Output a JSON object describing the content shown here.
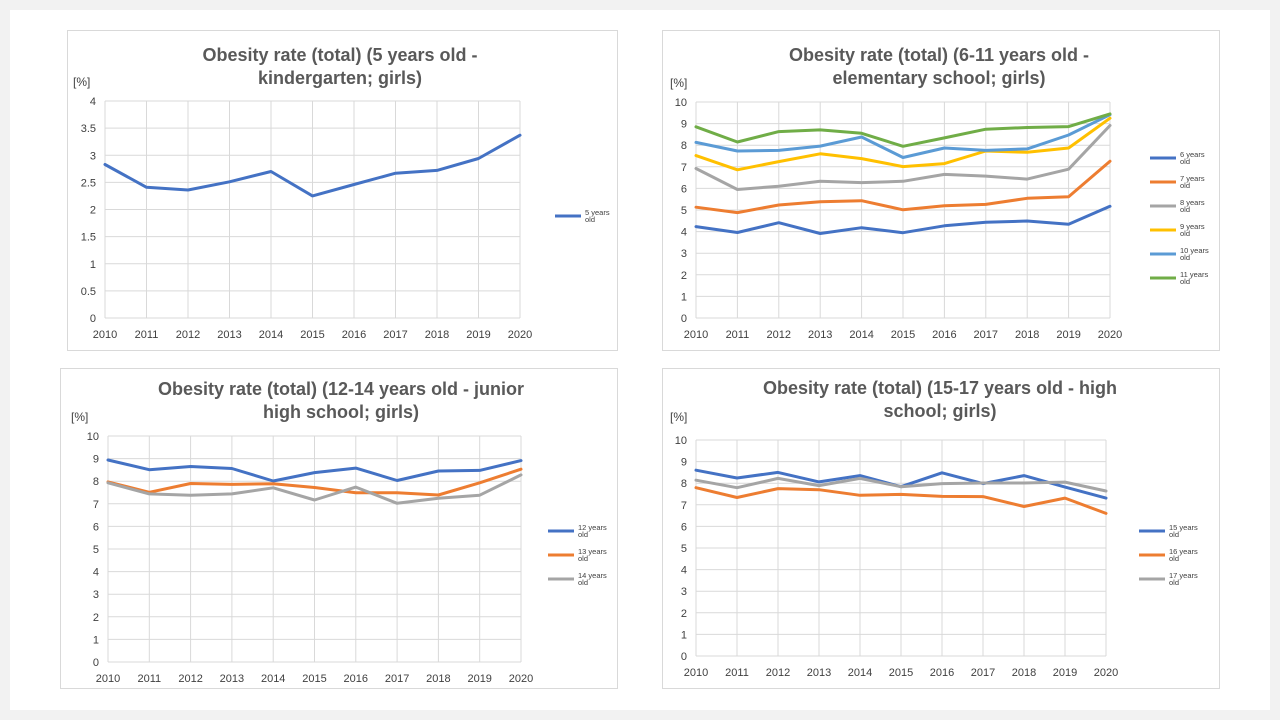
{
  "chart_data": [
    {
      "type": "line",
      "title_lines": [
        "Obesity rate (total) (5 years old -",
        "kindergarten; girls)"
      ],
      "unit_label": "[%]",
      "x": [
        "2010",
        "2011",
        "2012",
        "2013",
        "2014",
        "2015",
        "2016",
        "2017",
        "2018",
        "2019",
        "2020"
      ],
      "yticks": [
        "0",
        "0.5",
        "1",
        "1.5",
        "2",
        "2.5",
        "3",
        "3.5",
        "4"
      ],
      "ylim": [
        0,
        4
      ],
      "grid": true,
      "legend_position": "right",
      "series": [
        {
          "name_lines": [
            "5 years",
            "old"
          ],
          "color": "#4472c4",
          "values": [
            2.83,
            2.41,
            2.36,
            2.51,
            2.7,
            2.25,
            2.46,
            2.67,
            2.72,
            2.94,
            3.37
          ]
        }
      ]
    },
    {
      "type": "line",
      "title_lines": [
        "Obesity rate (total) (6-11 years old -",
        "elementary school; girls)"
      ],
      "unit_label": "[%]",
      "x": [
        "2010",
        "2011",
        "2012",
        "2013",
        "2014",
        "2015",
        "2016",
        "2017",
        "2018",
        "2019",
        "2020"
      ],
      "yticks": [
        "0",
        "1",
        "2",
        "3",
        "4",
        "5",
        "6",
        "7",
        "8",
        "9",
        "10"
      ],
      "ylim": [
        0,
        10
      ],
      "grid": true,
      "legend_position": "right",
      "series": [
        {
          "name_lines": [
            "6 years",
            "old"
          ],
          "color": "#4472c4",
          "values": [
            4.23,
            3.96,
            4.41,
            3.91,
            4.18,
            3.95,
            4.27,
            4.43,
            4.49,
            4.34,
            5.17
          ]
        },
        {
          "name_lines": [
            "7 years",
            "old"
          ],
          "color": "#ed7d31",
          "values": [
            5.13,
            4.88,
            5.23,
            5.38,
            5.43,
            5.01,
            5.2,
            5.26,
            5.54,
            5.61,
            7.26
          ]
        },
        {
          "name_lines": [
            "8 years",
            "old"
          ],
          "color": "#a5a5a5",
          "values": [
            6.92,
            5.95,
            6.1,
            6.33,
            6.27,
            6.33,
            6.65,
            6.57,
            6.43,
            6.89,
            8.91
          ]
        },
        {
          "name_lines": [
            "9 years",
            "old"
          ],
          "color": "#ffc000",
          "values": [
            7.52,
            6.86,
            7.24,
            7.6,
            7.38,
            7.01,
            7.15,
            7.73,
            7.67,
            7.87,
            9.25
          ]
        },
        {
          "name_lines": [
            "10 years",
            "old"
          ],
          "color": "#5b9bd5",
          "values": [
            8.13,
            7.73,
            7.76,
            7.96,
            8.38,
            7.43,
            7.87,
            7.76,
            7.83,
            8.47,
            9.41
          ]
        },
        {
          "name_lines": [
            "11 years",
            "old"
          ],
          "color": "#70ad47",
          "values": [
            8.85,
            8.15,
            8.63,
            8.71,
            8.55,
            7.95,
            8.34,
            8.74,
            8.82,
            8.86,
            9.45
          ]
        }
      ]
    },
    {
      "type": "line",
      "title_lines": [
        "Obesity rate (total) (12-14 years old - junior",
        "high school; girls)"
      ],
      "unit_label": "[%]",
      "x": [
        "2010",
        "2011",
        "2012",
        "2013",
        "2014",
        "2015",
        "2016",
        "2017",
        "2018",
        "2019",
        "2020"
      ],
      "yticks": [
        "0",
        "1",
        "2",
        "3",
        "4",
        "5",
        "6",
        "7",
        "8",
        "9",
        "10"
      ],
      "ylim": [
        0,
        10
      ],
      "grid": true,
      "legend_position": "right",
      "series": [
        {
          "name_lines": [
            "12 years",
            "old"
          ],
          "color": "#4472c4",
          "values": [
            8.94,
            8.51,
            8.65,
            8.56,
            8.01,
            8.38,
            8.58,
            8.03,
            8.45,
            8.48,
            8.91
          ]
        },
        {
          "name_lines": [
            "13 years",
            "old"
          ],
          "color": "#ed7d31",
          "values": [
            7.97,
            7.51,
            7.9,
            7.86,
            7.89,
            7.72,
            7.49,
            7.49,
            7.39,
            7.93,
            8.53
          ]
        },
        {
          "name_lines": [
            "14 years",
            "old"
          ],
          "color": "#a5a5a5",
          "values": [
            7.93,
            7.44,
            7.38,
            7.44,
            7.71,
            7.17,
            7.74,
            7.02,
            7.25,
            7.38,
            8.28
          ]
        }
      ]
    },
    {
      "type": "line",
      "title_lines": [
        "Obesity rate (total) (15-17 years old - high",
        "school; girls)"
      ],
      "unit_label": "[%]",
      "x": [
        "2010",
        "2011",
        "2012",
        "2013",
        "2014",
        "2015",
        "2016",
        "2017",
        "2018",
        "2019",
        "2020"
      ],
      "yticks": [
        "0",
        "1",
        "2",
        "3",
        "4",
        "5",
        "6",
        "7",
        "8",
        "9",
        "10"
      ],
      "ylim": [
        0,
        10
      ],
      "grid": true,
      "legend_position": "right",
      "series": [
        {
          "name_lines": [
            "15 years",
            "old"
          ],
          "color": "#4472c4",
          "values": [
            8.6,
            8.24,
            8.5,
            8.06,
            8.35,
            7.84,
            8.48,
            7.98,
            8.35,
            7.82,
            7.31
          ]
        },
        {
          "name_lines": [
            "16 years",
            "old"
          ],
          "color": "#ed7d31",
          "values": [
            7.79,
            7.34,
            7.75,
            7.7,
            7.44,
            7.48,
            7.39,
            7.38,
            6.92,
            7.31,
            6.6
          ]
        },
        {
          "name_lines": [
            "17 years",
            "old"
          ],
          "color": "#a5a5a5",
          "values": [
            8.14,
            7.79,
            8.22,
            7.89,
            8.22,
            7.84,
            7.98,
            8.01,
            8.01,
            8.05,
            7.64
          ]
        }
      ]
    }
  ]
}
